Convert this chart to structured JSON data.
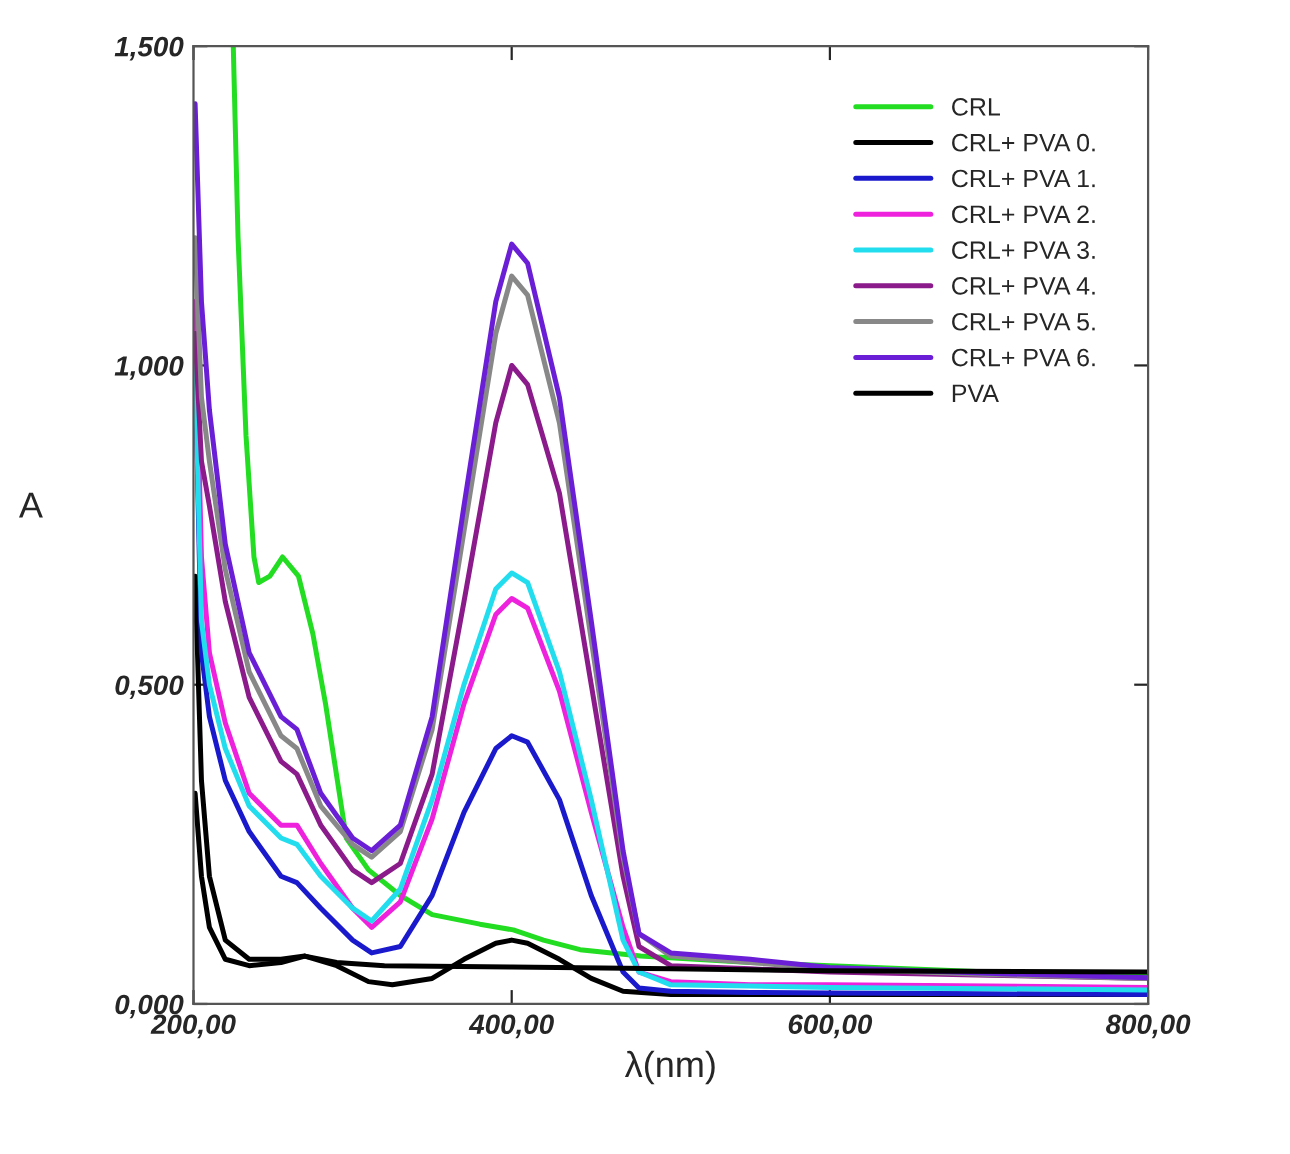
{
  "chart_data": {
    "type": "line",
    "xlabel": "λ(nm)",
    "ylabel": "A",
    "xlim": [
      200,
      800
    ],
    "ylim": [
      0,
      1.5
    ],
    "xticks": [
      {
        "value": 200,
        "label": "200,00"
      },
      {
        "value": 400,
        "label": "400,00"
      },
      {
        "value": 600,
        "label": "600,00"
      },
      {
        "value": 800,
        "label": "800,00"
      }
    ],
    "yticks": [
      {
        "value": 0,
        "label": "0,000"
      },
      {
        "value": 0.5,
        "label": "0,500"
      },
      {
        "value": 1.0,
        "label": "1,000"
      },
      {
        "value": 1.5,
        "label": "1,500"
      }
    ],
    "grid": false,
    "legend": "top right",
    "marker": "none",
    "line_style": "solid",
    "series": [
      {
        "name": "CRL",
        "color": "#22dd22",
        "x": [
          225,
          228,
          233,
          238,
          241,
          248,
          256,
          266,
          275,
          283,
          296,
          310,
          330,
          350,
          380,
          401,
          420,
          443,
          481,
          550,
          600,
          700,
          800
        ],
        "values": [
          1.5,
          1.2,
          0.89,
          0.7,
          0.66,
          0.67,
          0.7,
          0.67,
          0.58,
          0.47,
          0.26,
          0.21,
          0.17,
          0.14,
          0.125,
          0.116,
          0.1,
          0.085,
          0.075,
          0.065,
          0.06,
          0.05,
          0.045
        ]
      },
      {
        "name": "CRL+ PVA 0.",
        "color": "#000000",
        "x": [
          201,
          205,
          210,
          220,
          235,
          255,
          270,
          290,
          310,
          325,
          350,
          370,
          390,
          400,
          410,
          430,
          450,
          470,
          500,
          600,
          800
        ],
        "values": [
          0.67,
          0.35,
          0.2,
          0.1,
          0.07,
          0.07,
          0.075,
          0.06,
          0.035,
          0.03,
          0.04,
          0.07,
          0.095,
          0.1,
          0.095,
          0.07,
          0.04,
          0.02,
          0.015,
          0.015,
          0.015
        ]
      },
      {
        "name": "CRL+ PVA 1.",
        "color": "#1a1acc",
        "x": [
          201,
          205,
          210,
          220,
          235,
          255,
          265,
          280,
          300,
          312,
          330,
          350,
          370,
          390,
          400,
          410,
          430,
          450,
          470,
          480,
          500,
          550,
          600,
          700,
          800
        ],
        "values": [
          1.0,
          0.55,
          0.45,
          0.35,
          0.27,
          0.2,
          0.19,
          0.15,
          0.1,
          0.08,
          0.09,
          0.17,
          0.3,
          0.4,
          0.42,
          0.41,
          0.32,
          0.17,
          0.05,
          0.025,
          0.02,
          0.018,
          0.017,
          0.016,
          0.015
        ]
      },
      {
        "name": "CRL+ PVA 2.",
        "color": "#ee22dd",
        "x": [
          201,
          205,
          210,
          220,
          235,
          255,
          265,
          280,
          300,
          312,
          330,
          350,
          370,
          390,
          400,
          410,
          430,
          450,
          470,
          480,
          500,
          550,
          600,
          700,
          800
        ],
        "values": [
          1.1,
          0.7,
          0.55,
          0.44,
          0.33,
          0.28,
          0.28,
          0.22,
          0.15,
          0.12,
          0.16,
          0.29,
          0.47,
          0.61,
          0.635,
          0.62,
          0.49,
          0.3,
          0.12,
          0.05,
          0.035,
          0.03,
          0.03,
          0.028,
          0.026
        ]
      },
      {
        "name": "CRL+ PVA 3.",
        "color": "#22ddee",
        "x": [
          201,
          205,
          210,
          220,
          235,
          255,
          265,
          280,
          300,
          312,
          330,
          350,
          370,
          390,
          400,
          410,
          430,
          450,
          470,
          480,
          500,
          550,
          600,
          700,
          800
        ],
        "values": [
          1.0,
          0.6,
          0.5,
          0.4,
          0.31,
          0.26,
          0.25,
          0.2,
          0.15,
          0.13,
          0.18,
          0.32,
          0.5,
          0.65,
          0.675,
          0.66,
          0.52,
          0.32,
          0.1,
          0.05,
          0.03,
          0.028,
          0.026,
          0.024,
          0.022
        ]
      },
      {
        "name": "CRL+ PVA 4.",
        "color": "#8b1a8b",
        "x": [
          201,
          205,
          210,
          220,
          235,
          255,
          265,
          280,
          300,
          312,
          330,
          350,
          370,
          390,
          400,
          410,
          430,
          450,
          470,
          480,
          500,
          550,
          600,
          700,
          800
        ],
        "values": [
          1.05,
          0.85,
          0.78,
          0.63,
          0.48,
          0.38,
          0.36,
          0.28,
          0.21,
          0.19,
          0.22,
          0.36,
          0.63,
          0.91,
          1.0,
          0.97,
          0.8,
          0.5,
          0.2,
          0.09,
          0.06,
          0.055,
          0.05,
          0.045,
          0.04
        ]
      },
      {
        "name": "CRL+ PVA 5.",
        "color": "#888888",
        "x": [
          201,
          205,
          210,
          220,
          235,
          255,
          265,
          280,
          300,
          312,
          330,
          350,
          370,
          390,
          400,
          410,
          430,
          450,
          470,
          480,
          500,
          550,
          600,
          700,
          800
        ],
        "values": [
          1.2,
          0.95,
          0.85,
          0.68,
          0.52,
          0.42,
          0.4,
          0.31,
          0.25,
          0.23,
          0.27,
          0.43,
          0.74,
          1.05,
          1.14,
          1.11,
          0.91,
          0.57,
          0.23,
          0.11,
          0.075,
          0.065,
          0.055,
          0.046,
          0.04
        ]
      },
      {
        "name": "CRL+ PVA 6.",
        "color": "#6a1fd6",
        "x": [
          201,
          205,
          210,
          220,
          235,
          255,
          265,
          280,
          300,
          312,
          330,
          350,
          370,
          390,
          400,
          410,
          430,
          450,
          470,
          480,
          500,
          550,
          600,
          700,
          800
        ],
        "values": [
          1.41,
          1.1,
          0.93,
          0.72,
          0.55,
          0.45,
          0.43,
          0.33,
          0.26,
          0.24,
          0.28,
          0.45,
          0.78,
          1.1,
          1.19,
          1.16,
          0.95,
          0.6,
          0.24,
          0.11,
          0.08,
          0.07,
          0.057,
          0.048,
          0.041
        ]
      },
      {
        "name": "PVA",
        "color": "#000000",
        "x": [
          201,
          205,
          210,
          220,
          235,
          255,
          270,
          290,
          320,
          400,
          500,
          600,
          800
        ],
        "values": [
          0.33,
          0.2,
          0.12,
          0.07,
          0.06,
          0.065,
          0.075,
          0.065,
          0.06,
          0.058,
          0.055,
          0.052,
          0.05
        ]
      }
    ]
  }
}
